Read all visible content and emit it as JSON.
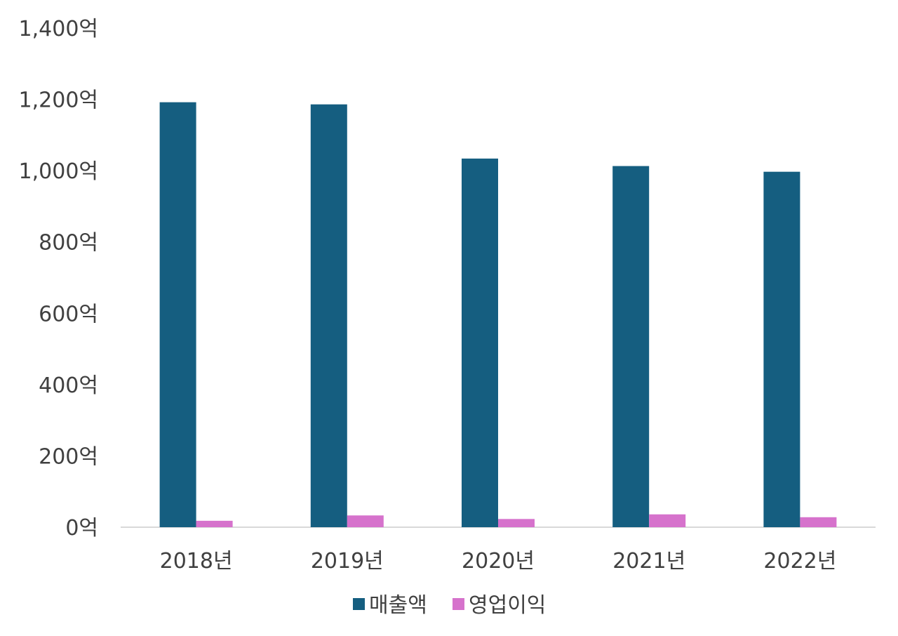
{
  "chart_data": {
    "type": "bar",
    "categories": [
      "2018년",
      "2019년",
      "2020년",
      "2021년",
      "2022년"
    ],
    "series": [
      {
        "name": "매출액",
        "color": "#155E80",
        "values": [
          1192,
          1186,
          1034,
          1013,
          997
        ]
      },
      {
        "name": "영업이익",
        "color": "#D672CC",
        "values": [
          18,
          33,
          23,
          36,
          28
        ]
      }
    ],
    "ylim": [
      0,
      1400
    ],
    "yticks": [
      0,
      200,
      400,
      600,
      800,
      1000,
      1200,
      1400
    ],
    "ytick_labels": [
      "0억",
      "200억",
      "400억",
      "600억",
      "800억",
      "1,000억",
      "1,200억",
      "1,400억"
    ],
    "grid": false,
    "legend": "bottom-center",
    "axis_color": "#D9D9D9"
  }
}
